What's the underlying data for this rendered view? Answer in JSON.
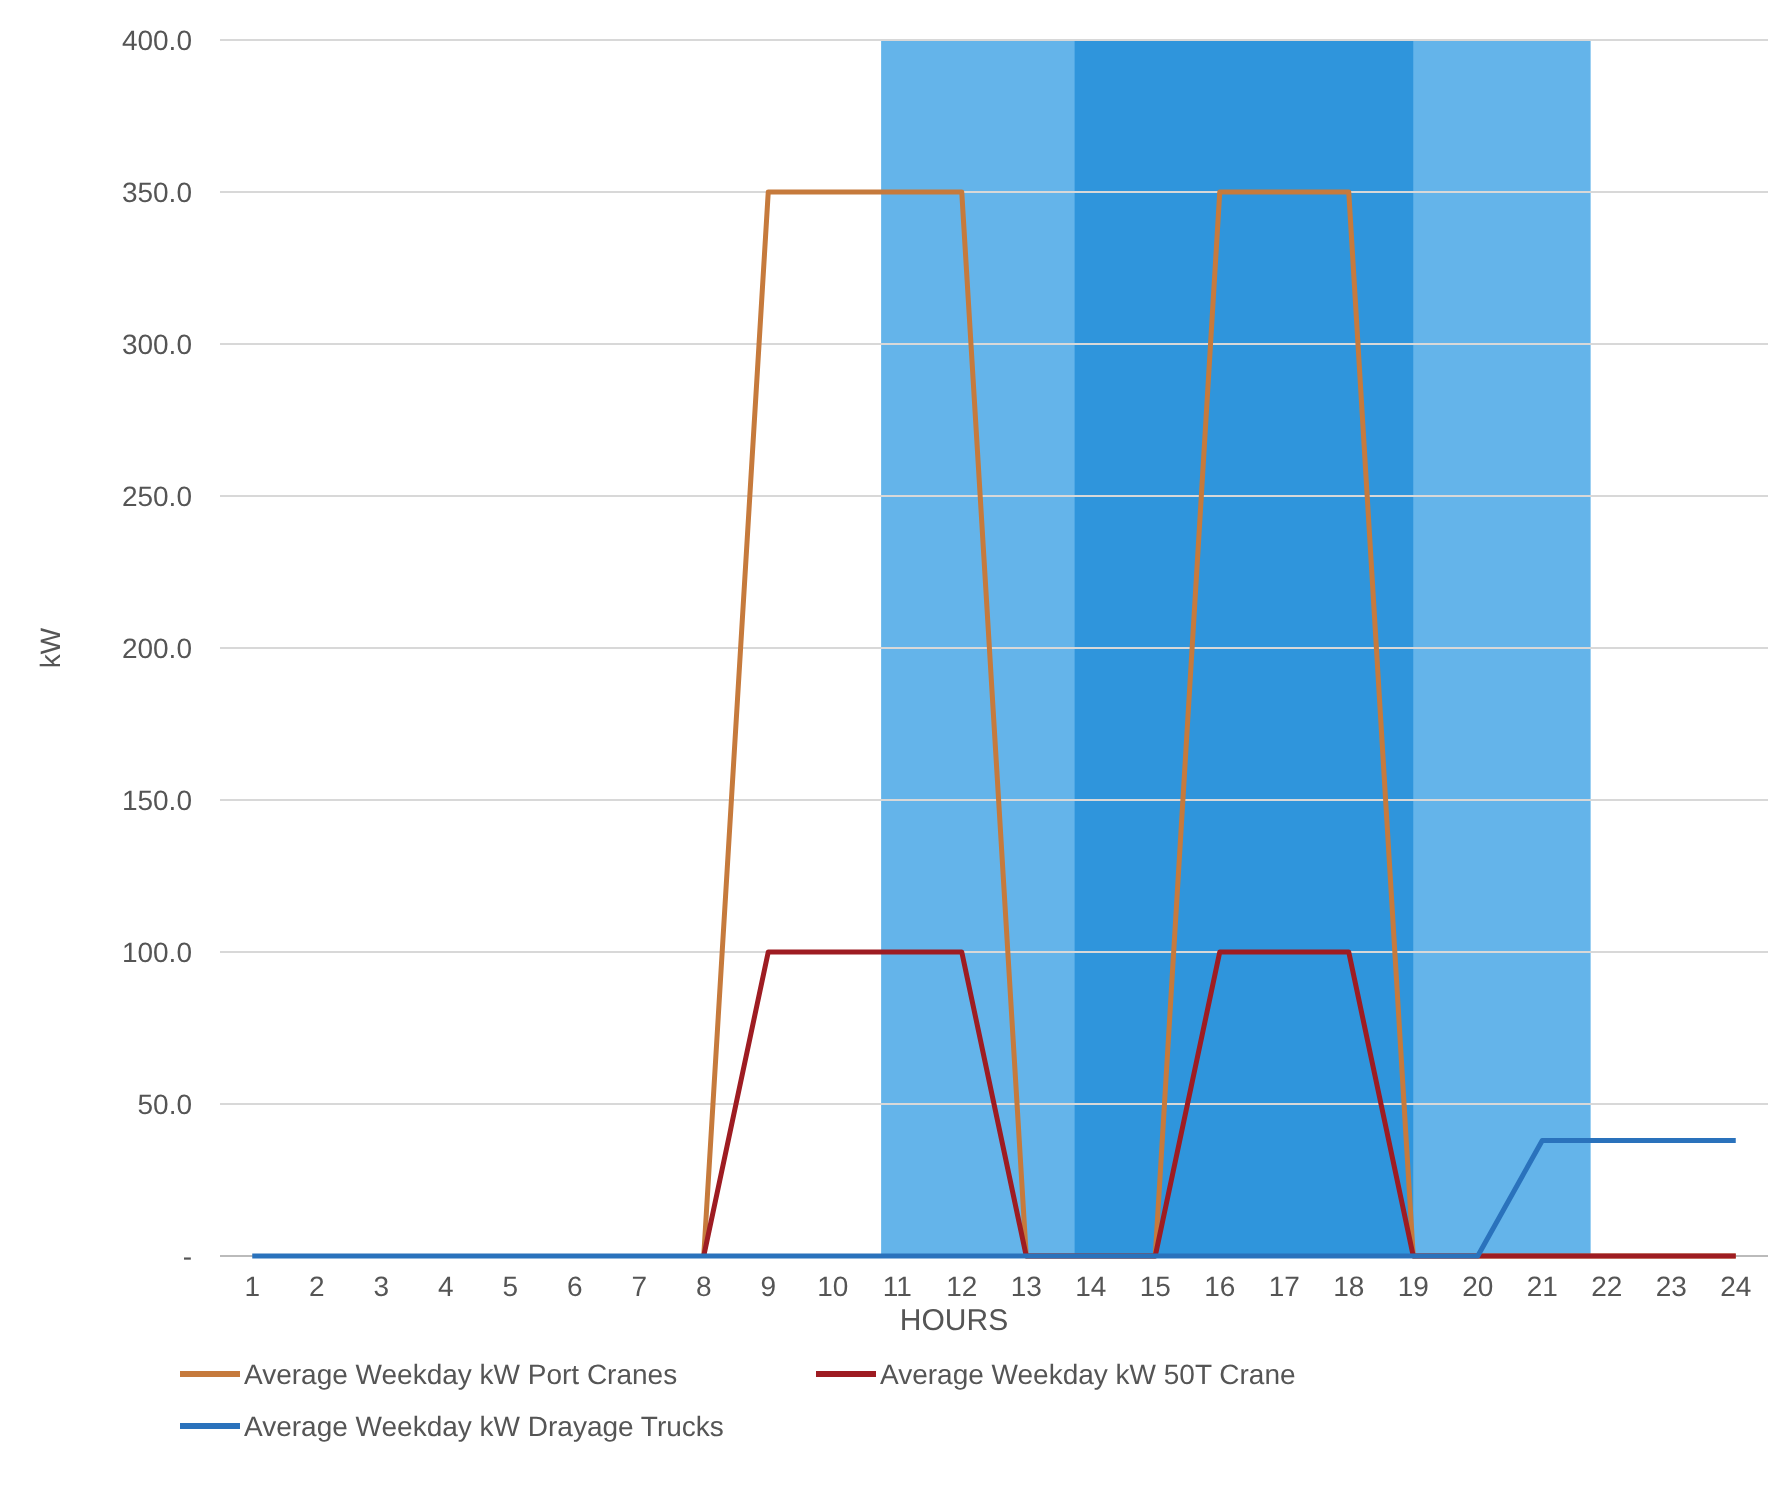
{
  "chart_data": {
    "type": "line",
    "xlabel": "HOURS",
    "ylabel": "kW",
    "x": [
      1,
      2,
      3,
      4,
      5,
      6,
      7,
      8,
      9,
      10,
      11,
      12,
      13,
      14,
      15,
      16,
      17,
      18,
      19,
      20,
      21,
      22,
      23,
      24
    ],
    "xlim": [
      0.5,
      24.5
    ],
    "xticks": [
      1,
      2,
      3,
      4,
      5,
      6,
      7,
      8,
      9,
      10,
      11,
      12,
      13,
      14,
      15,
      16,
      17,
      18,
      19,
      20,
      21,
      22,
      23,
      24
    ],
    "ylim": [
      0,
      400
    ],
    "yticks": [
      {
        "value": 0,
        "label": "-"
      },
      {
        "value": 50,
        "label": "50.0"
      },
      {
        "value": 100,
        "label": "100.0"
      },
      {
        "value": 150,
        "label": "150.0"
      },
      {
        "value": 200,
        "label": "200.0"
      },
      {
        "value": 250,
        "label": "250.0"
      },
      {
        "value": 300,
        "label": "300.0"
      },
      {
        "value": 350,
        "label": "350.0"
      },
      {
        "value": 400,
        "label": "400.0"
      }
    ],
    "grid": "y",
    "legend": "bottom",
    "marker": "none",
    "line_style": "solid",
    "bands": [
      {
        "axis": "x",
        "from": 10.75,
        "to": 21.75,
        "color": "#64b4ea"
      },
      {
        "axis": "x",
        "from": 13.75,
        "to": 19,
        "color": "#2f95dc"
      }
    ],
    "series": [
      {
        "name": "Average Weekday kW Port Cranes",
        "color": "#c67a3c",
        "values": [
          null,
          null,
          null,
          null,
          null,
          null,
          null,
          0,
          350,
          350,
          350,
          350,
          0,
          0,
          0,
          350,
          350,
          350,
          0,
          0,
          0,
          0,
          0,
          0
        ]
      },
      {
        "name": "Average Weekday kW 50T Crane",
        "color": "#9e1c22",
        "values": [
          null,
          null,
          null,
          null,
          null,
          null,
          null,
          0,
          100,
          100,
          100,
          100,
          0,
          0,
          0,
          100,
          100,
          100,
          0,
          0,
          0,
          0,
          0,
          0
        ]
      },
      {
        "name": "Average Weekday kW Drayage Trucks",
        "color": "#2a72bc",
        "values": [
          0,
          0,
          0,
          0,
          0,
          0,
          0,
          0,
          0,
          0,
          0,
          0,
          0,
          0,
          0,
          0,
          0,
          0,
          0,
          0,
          38,
          38,
          38,
          38
        ]
      }
    ]
  }
}
